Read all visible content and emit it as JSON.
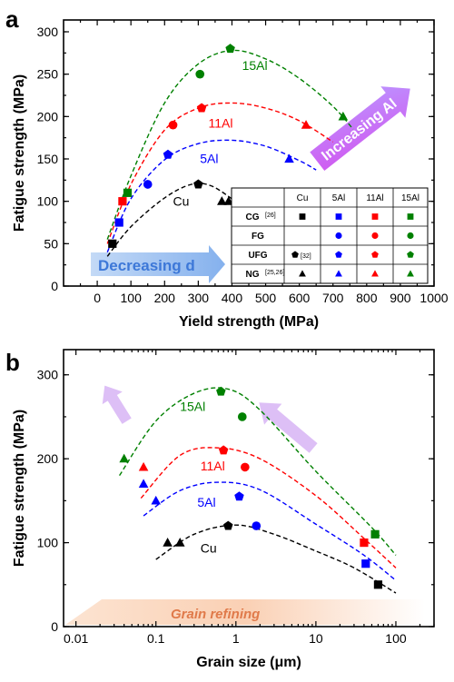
{
  "chart_data": [
    {
      "panel_label": "a",
      "type": "scatter",
      "xlabel": "Yield strength (MPa)",
      "ylabel": "Fatigue strength (MPa)",
      "xlim": [
        -100,
        1000
      ],
      "ylim": [
        0,
        300
      ],
      "xticks": [
        0,
        100,
        200,
        300,
        400,
        500,
        600,
        700,
        800,
        900,
        1000
      ],
      "yticks": [
        0,
        50,
        100,
        150,
        200,
        250,
        300
      ],
      "series": [
        {
          "name": "Cu",
          "color": "#000000",
          "points": [
            {
              "x": 45,
              "y": 50,
              "marker": "square"
            },
            {
              "x": 300,
              "y": 120,
              "marker": "pentagon"
            },
            {
              "x": 370,
              "y": 100,
              "marker": "triangle"
            },
            {
              "x": 390,
              "y": 100,
              "marker": "triangle"
            }
          ],
          "curve": [
            [
              30,
              35
            ],
            [
              100,
              70
            ],
            [
              200,
              104
            ],
            [
              280,
              120
            ],
            [
              340,
              118
            ],
            [
              410,
              100
            ]
          ]
        },
        {
          "name": "5Al",
          "color": "#0000ff",
          "points": [
            {
              "x": 65,
              "y": 75,
              "marker": "square"
            },
            {
              "x": 150,
              "y": 120,
              "marker": "circle"
            },
            {
              "x": 210,
              "y": 155,
              "marker": "pentagon"
            },
            {
              "x": 570,
              "y": 150,
              "marker": "triangle"
            }
          ],
          "curve": [
            [
              30,
              40
            ],
            [
              100,
              103
            ],
            [
              200,
              149
            ],
            [
              300,
              168
            ],
            [
              400,
              172
            ],
            [
              500,
              165
            ],
            [
              600,
              148
            ],
            [
              650,
              137
            ]
          ]
        },
        {
          "name": "11Al",
          "color": "#ff0000",
          "points": [
            {
              "x": 75,
              "y": 100,
              "marker": "square"
            },
            {
              "x": 225,
              "y": 190,
              "marker": "circle"
            },
            {
              "x": 310,
              "y": 210,
              "marker": "pentagon"
            },
            {
              "x": 620,
              "y": 190,
              "marker": "triangle"
            }
          ],
          "curve": [
            [
              30,
              50
            ],
            [
              100,
              120
            ],
            [
              200,
              184
            ],
            [
              300,
              210
            ],
            [
              400,
              216
            ],
            [
              500,
              210
            ],
            [
              600,
              195
            ],
            [
              700,
              170
            ]
          ]
        },
        {
          "name": "15Al",
          "color": "#008000",
          "points": [
            {
              "x": 90,
              "y": 110,
              "marker": "square"
            },
            {
              "x": 305,
              "y": 250,
              "marker": "circle"
            },
            {
              "x": 395,
              "y": 280,
              "marker": "pentagon"
            },
            {
              "x": 730,
              "y": 200,
              "marker": "triangle"
            }
          ],
          "curve": [
            [
              30,
              55
            ],
            [
              100,
              130
            ],
            [
              200,
              216
            ],
            [
              300,
              262
            ],
            [
              400,
              278
            ],
            [
              500,
              268
            ],
            [
              600,
              245
            ],
            [
              700,
              212
            ],
            [
              760,
              185
            ]
          ]
        }
      ],
      "curve_labels": [
        {
          "text": "Cu",
          "x": 225,
          "y": 95,
          "color": "#000000"
        },
        {
          "text": "5Al",
          "x": 305,
          "y": 145,
          "color": "#0000ff"
        },
        {
          "text": "11Al",
          "x": 330,
          "y": 187,
          "color": "#ff0000"
        },
        {
          "text": "15Al",
          "x": 430,
          "y": 255,
          "color": "#008000"
        }
      ],
      "annotations": [
        {
          "text": "Decreasing d",
          "color": "#3d78d8"
        },
        {
          "text": "Increasing Al",
          "color": "#9b30ff"
        }
      ],
      "legend_table": {
        "columns": [
          "",
          "Cu",
          "5Al",
          "11Al",
          "15Al"
        ],
        "rows": [
          {
            "label": "CG",
            "ref": "[26]",
            "marker": "square",
            "cells": [
              true,
              true,
              true,
              true
            ],
            "cu_ref": ""
          },
          {
            "label": "FG",
            "ref": "",
            "marker": "circle",
            "cells": [
              false,
              true,
              true,
              true
            ],
            "cu_ref": ""
          },
          {
            "label": "UFG",
            "ref": "",
            "marker": "pentagon",
            "cells": [
              true,
              true,
              true,
              true
            ],
            "cu_ref": "[32]"
          },
          {
            "label": "NG",
            "ref": "[25,26]",
            "marker": "triangle",
            "cells": [
              true,
              true,
              true,
              true
            ],
            "cu_ref": ""
          }
        ]
      }
    },
    {
      "panel_label": "b",
      "type": "scatter",
      "xlabel": "Grain size (μm)",
      "ylabel": "Fatigue strength (MPa)",
      "xscale": "log",
      "xlim": [
        0.007,
        300
      ],
      "ylim": [
        0,
        330
      ],
      "xticks": [
        0.01,
        0.1,
        1,
        10,
        100
      ],
      "xticklabels": [
        "0.01",
        "0.1",
        "1",
        "10",
        "100"
      ],
      "yticks": [
        0,
        100,
        200,
        300
      ],
      "series": [
        {
          "name": "Cu",
          "color": "#000000",
          "points": [
            {
              "x": 0.14,
              "y": 100,
              "marker": "triangle"
            },
            {
              "x": 0.2,
              "y": 100,
              "marker": "triangle"
            },
            {
              "x": 0.8,
              "y": 120,
              "marker": "pentagon"
            },
            {
              "x": 60,
              "y": 50,
              "marker": "square"
            }
          ],
          "curve": [
            [
              0.1,
              80
            ],
            [
              0.3,
              110
            ],
            [
              1,
              121
            ],
            [
              3,
              110
            ],
            [
              10,
              90
            ],
            [
              30,
              70
            ],
            [
              100,
              40
            ]
          ]
        },
        {
          "name": "5Al",
          "color": "#0000ff",
          "points": [
            {
              "x": 0.07,
              "y": 170,
              "marker": "triangle"
            },
            {
              "x": 0.1,
              "y": 150,
              "marker": "triangle"
            },
            {
              "x": 1.1,
              "y": 155,
              "marker": "pentagon"
            },
            {
              "x": 1.8,
              "y": 120,
              "marker": "circle"
            },
            {
              "x": 42,
              "y": 75,
              "marker": "square"
            }
          ],
          "curve": [
            [
              0.07,
              132
            ],
            [
              0.2,
              162
            ],
            [
              0.6,
              172
            ],
            [
              2,
              163
            ],
            [
              10,
              122
            ],
            [
              40,
              85
            ],
            [
              100,
              55
            ]
          ]
        },
        {
          "name": "11Al",
          "color": "#ff0000",
          "points": [
            {
              "x": 0.07,
              "y": 190,
              "marker": "triangle"
            },
            {
              "x": 0.7,
              "y": 210,
              "marker": "pentagon"
            },
            {
              "x": 1.3,
              "y": 190,
              "marker": "circle"
            },
            {
              "x": 40,
              "y": 100,
              "marker": "square"
            }
          ],
          "curve": [
            [
              0.065,
              153
            ],
            [
              0.2,
              204
            ],
            [
              0.6,
              213
            ],
            [
              2,
              200
            ],
            [
              10,
              156
            ],
            [
              40,
              105
            ],
            [
              100,
              70
            ]
          ]
        },
        {
          "name": "15Al",
          "color": "#008000",
          "points": [
            {
              "x": 0.04,
              "y": 200,
              "marker": "triangle"
            },
            {
              "x": 0.65,
              "y": 280,
              "marker": "pentagon"
            },
            {
              "x": 1.2,
              "y": 250,
              "marker": "circle"
            },
            {
              "x": 55,
              "y": 110,
              "marker": "square"
            }
          ],
          "curve": [
            [
              0.035,
              180
            ],
            [
              0.1,
              245
            ],
            [
              0.3,
              278
            ],
            [
              0.8,
              283
            ],
            [
              2,
              258
            ],
            [
              10,
              185
            ],
            [
              50,
              118
            ],
            [
              100,
              85
            ]
          ]
        }
      ],
      "curve_labels": [
        {
          "text": "Cu",
          "x": 0.36,
          "y": 88,
          "color": "#000000"
        },
        {
          "text": "5Al",
          "x": 0.33,
          "y": 143,
          "color": "#0000ff"
        },
        {
          "text": "11Al",
          "x": 0.36,
          "y": 186,
          "color": "#ff0000"
        },
        {
          "text": "15Al",
          "x": 0.2,
          "y": 257,
          "color": "#008000"
        }
      ],
      "annotations": [
        {
          "text": "Grain refining",
          "color": "#e07a4a"
        }
      ]
    }
  ]
}
